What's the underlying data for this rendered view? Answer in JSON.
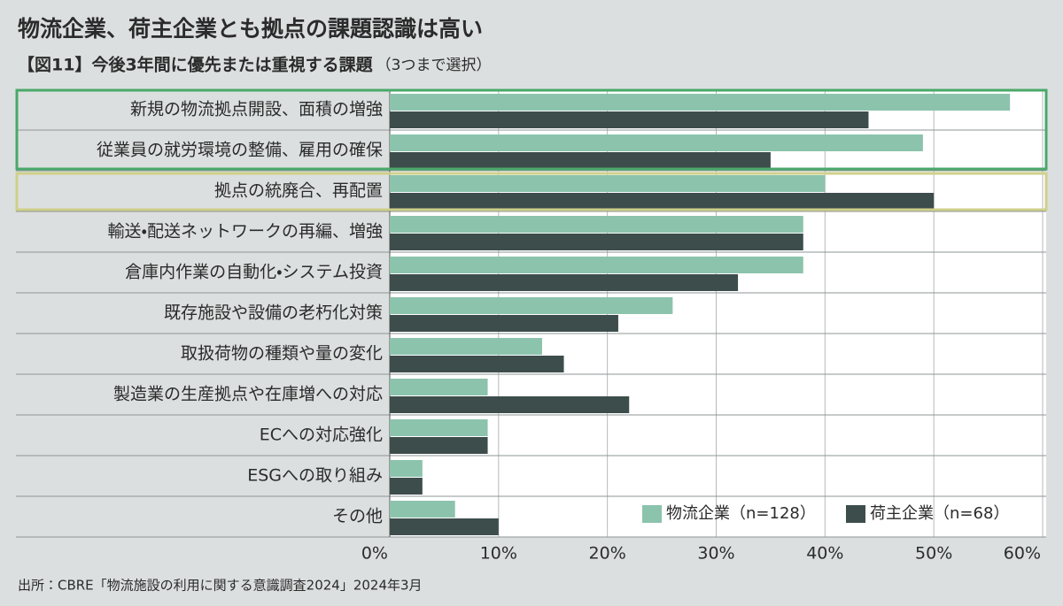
{
  "chart_data": {
    "type": "hbar",
    "title": "物流企業、荷主企業とも拠点の課題認識は高い",
    "subtitle": "【図11】今後3年間に優先または重視する課題",
    "subtitle_note": "（3つまで選択）",
    "source": "出所：CBRE「物流施設の利用に関する意識調査2024」2024年3月",
    "categories": [
      "新規の物流拠点開設、面積の増強",
      "従業員の就労環境の整備、雇用の確保",
      "拠点の統廃合、再配置",
      "輸送・配送ネットワークの再編、増強",
      "倉庫内作業の自動化・システム投資",
      "既存施設や設備の老朽化対策",
      "取扱荷物の種類や量の変化",
      "製造業の生産拠点や在庫増への対応",
      "ECへの対応強化",
      "ESGへの取り組み",
      "その他"
    ],
    "series": [
      {
        "name": "物流企業（n=128）",
        "color": "#8cc3ad",
        "values": [
          57,
          49,
          40,
          38,
          38,
          26,
          14,
          9,
          9,
          3,
          6
        ]
      },
      {
        "name": "荷主企業（n=68）",
        "color": "#3d4d4c",
        "values": [
          44,
          35,
          50,
          38,
          32,
          21,
          16,
          22,
          9,
          3,
          10
        ]
      }
    ],
    "xlim": [
      0,
      60
    ],
    "xticks": [
      {
        "value": 0,
        "label": "0%"
      },
      {
        "value": 10,
        "label": "10%"
      },
      {
        "value": 20,
        "label": "20%"
      },
      {
        "value": 30,
        "label": "30%"
      },
      {
        "value": 40,
        "label": "40%"
      },
      {
        "value": 50,
        "label": "50%"
      },
      {
        "value": 60,
        "label": "60%"
      }
    ],
    "grid": true,
    "legend": "lower right"
  }
}
